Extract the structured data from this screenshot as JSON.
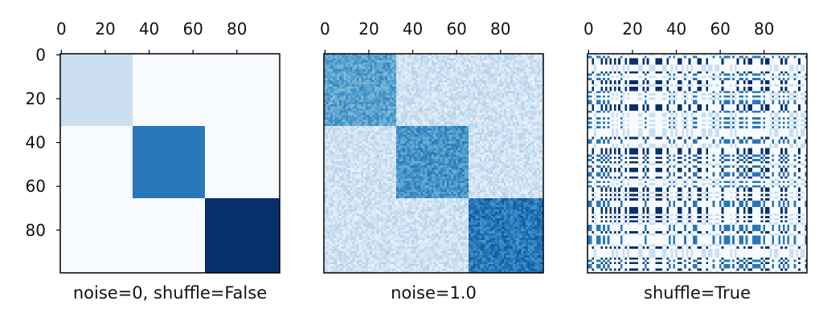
{
  "chart_data": [
    {
      "type": "heatmap",
      "xlabel": "noise=0, shuffle=False",
      "x_ticks": [
        "0",
        "20",
        "40",
        "60",
        "80"
      ],
      "y_ticks": [
        "0",
        "20",
        "40",
        "60",
        "80"
      ],
      "show_y_ticks": true,
      "size": 100,
      "xlim": [
        0,
        100
      ],
      "ylim": [
        0,
        100
      ],
      "colormap": "Blues",
      "vmax": 3.6,
      "noise": 0,
      "shuffle": false,
      "blocks": [
        {
          "start": 0,
          "end": 33,
          "value": 0.8
        },
        {
          "start": 33,
          "end": 66,
          "value": 2.6
        },
        {
          "start": 66,
          "end": 100,
          "value": 3.6
        }
      ],
      "off_block_value": 0
    },
    {
      "type": "heatmap",
      "xlabel": "noise=1.0",
      "x_ticks": [
        "0",
        "20",
        "40",
        "60",
        "80"
      ],
      "y_ticks": [],
      "show_y_ticks": false,
      "size": 100,
      "xlim": [
        0,
        100
      ],
      "ylim": [
        0,
        100
      ],
      "colormap": "Blues",
      "vmax": 3.6,
      "noise": 1.0,
      "shuffle": false,
      "blocks": [
        {
          "start": 0,
          "end": 33,
          "value": 2.0
        },
        {
          "start": 33,
          "end": 66,
          "value": 2.2
        },
        {
          "start": 66,
          "end": 100,
          "value": 2.6
        }
      ],
      "off_block_value": 0.7
    },
    {
      "type": "heatmap",
      "xlabel": "shuffle=True",
      "x_ticks": [
        "0",
        "20",
        "40",
        "60",
        "80"
      ],
      "y_ticks": [],
      "show_y_ticks": false,
      "size": 100,
      "xlim": [
        0,
        100
      ],
      "ylim": [
        0,
        100
      ],
      "colormap": "Blues",
      "vmax": 3.6,
      "noise": 0,
      "shuffle": true,
      "blocks": [
        {
          "start": 0,
          "end": 33,
          "value": 0.8
        },
        {
          "start": 33,
          "end": 66,
          "value": 2.6
        },
        {
          "start": 66,
          "end": 100,
          "value": 3.6
        }
      ],
      "off_block_value": 0
    }
  ]
}
